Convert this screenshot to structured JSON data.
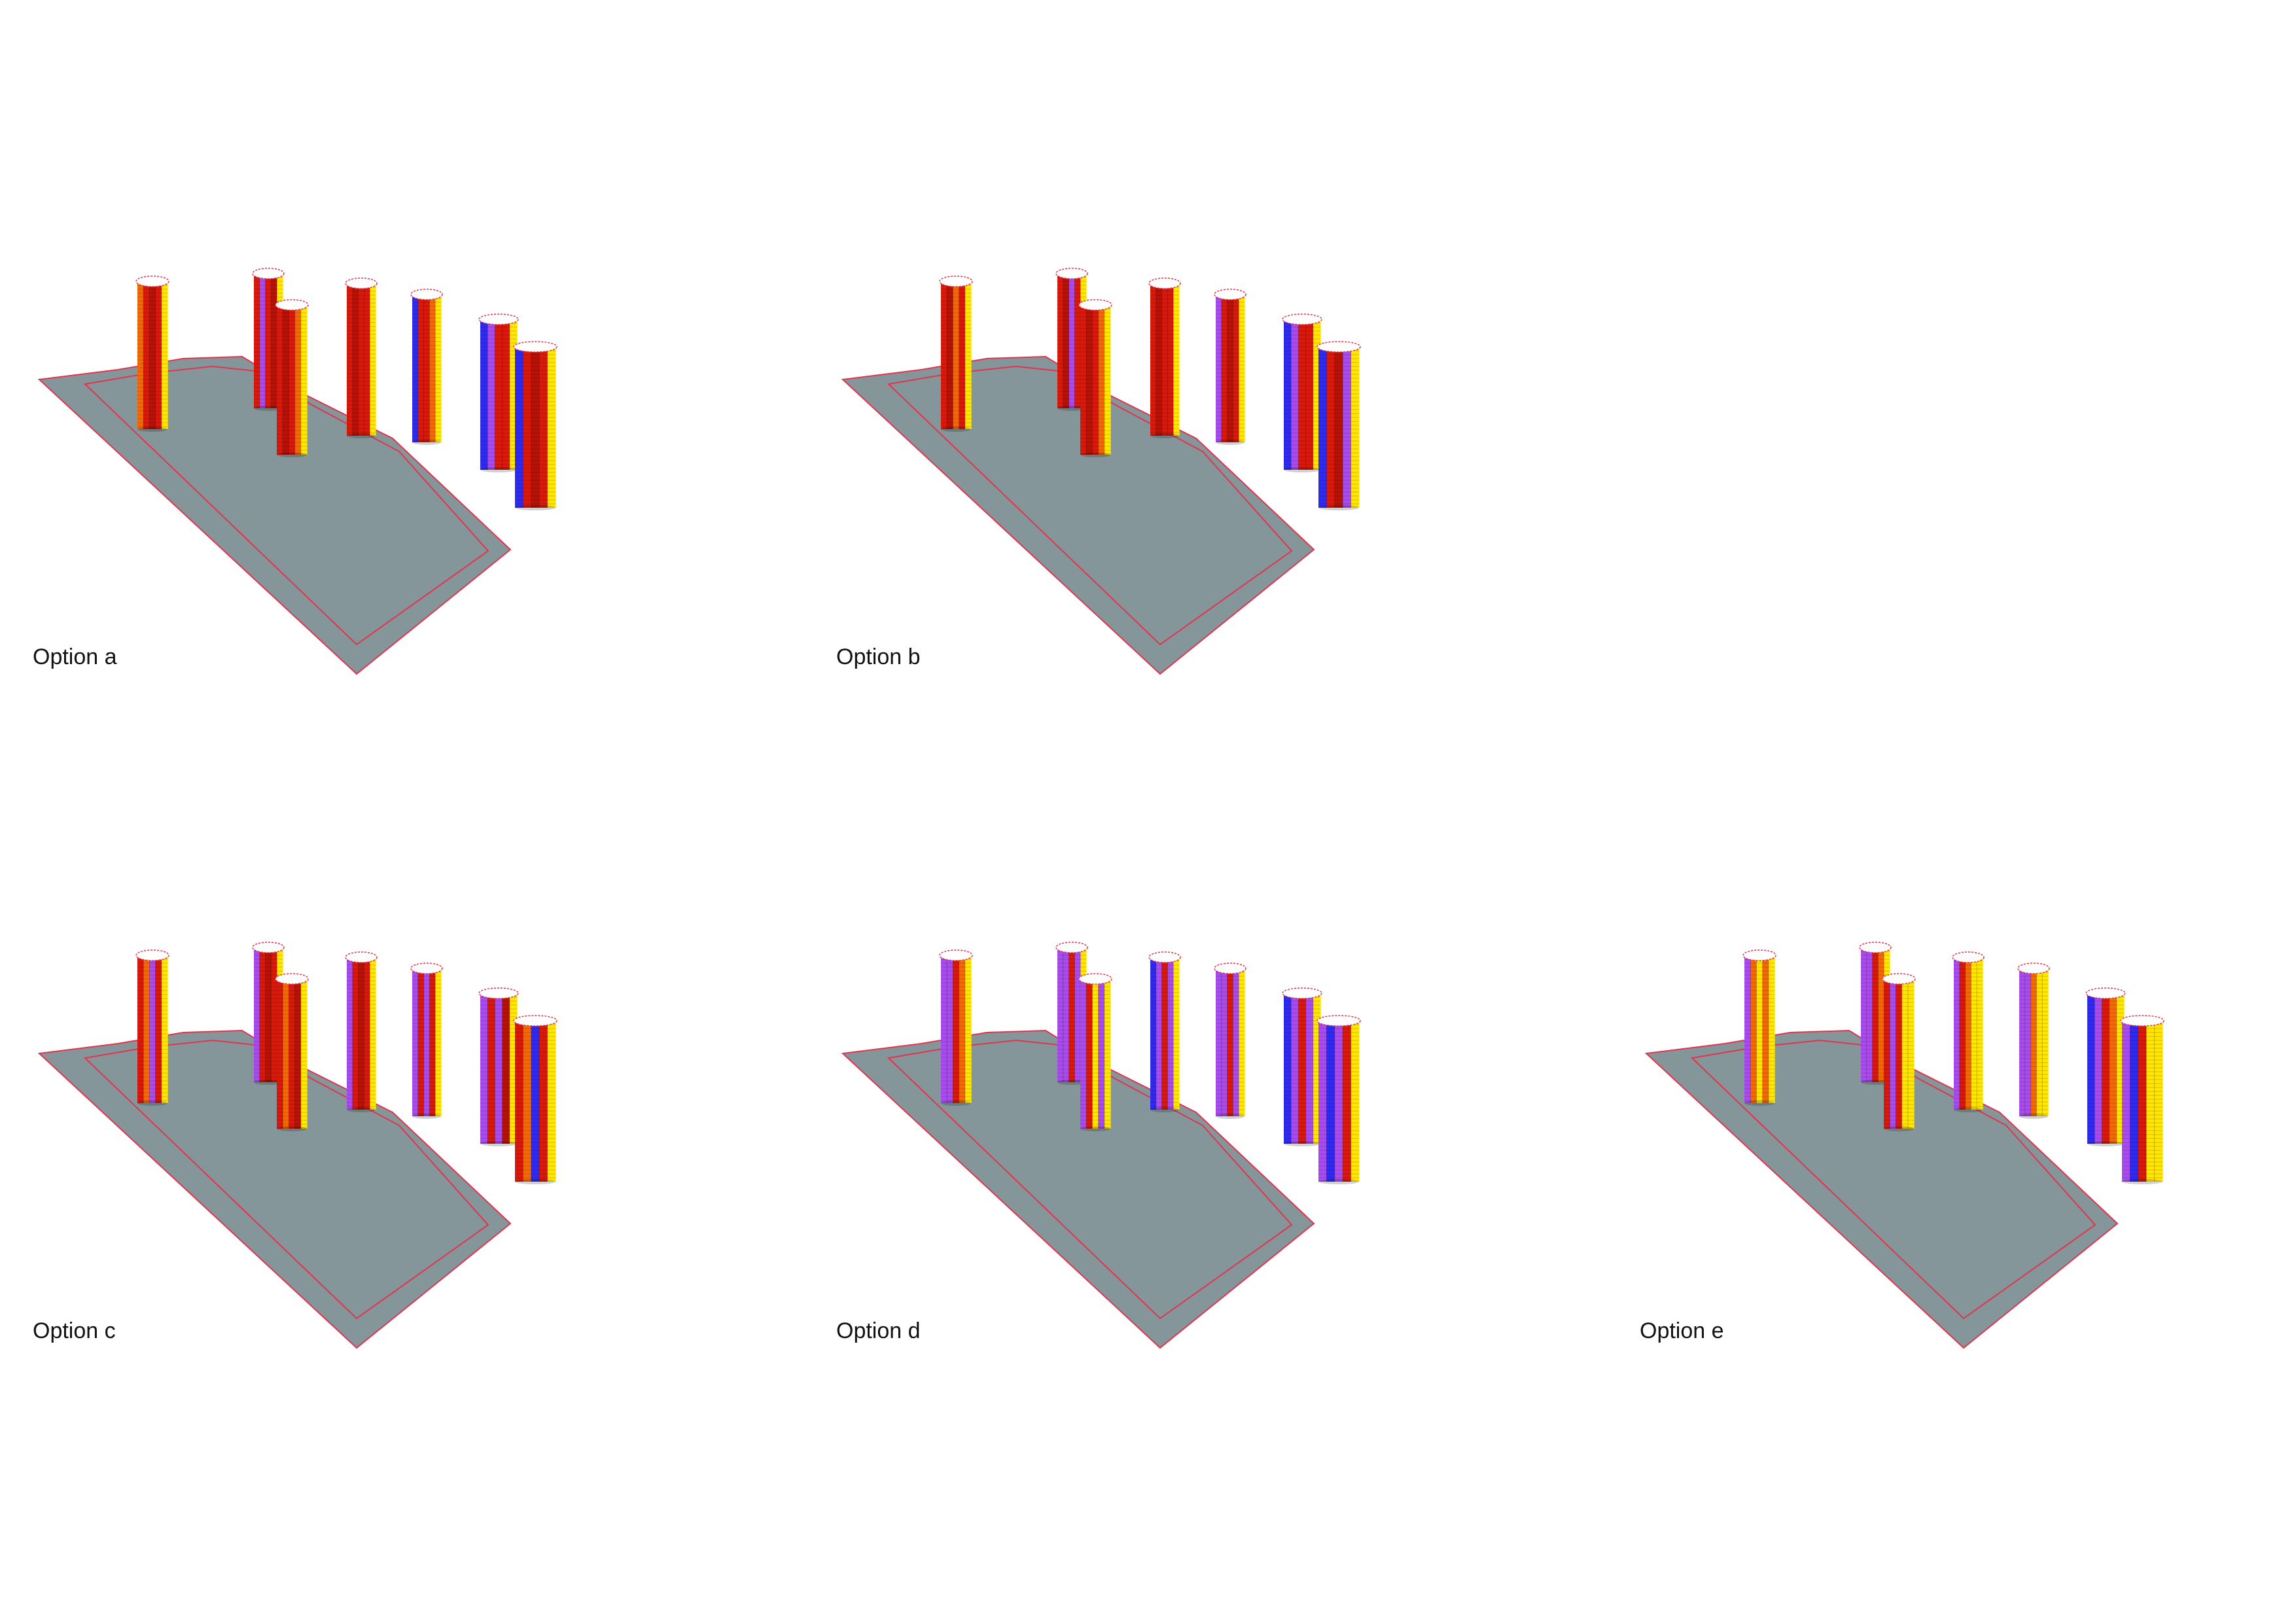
{
  "options": [
    {
      "label": "Option a",
      "variant": "a"
    },
    {
      "label": "Option b",
      "variant": "b"
    },
    {
      "label": "Option c",
      "variant": "c"
    },
    {
      "label": "Option d",
      "variant": "d"
    },
    {
      "label": "Option e",
      "variant": "e"
    }
  ],
  "colors": {
    "site": "#84969a",
    "boundary": "#e0354e",
    "red": "#d8190c",
    "dark_red": "#b51208",
    "orange": "#f26a08",
    "yellow": "#ffe800",
    "violet": "#a64cf0",
    "blue": "#2b2bf2",
    "roof": "#ffffff"
  }
}
